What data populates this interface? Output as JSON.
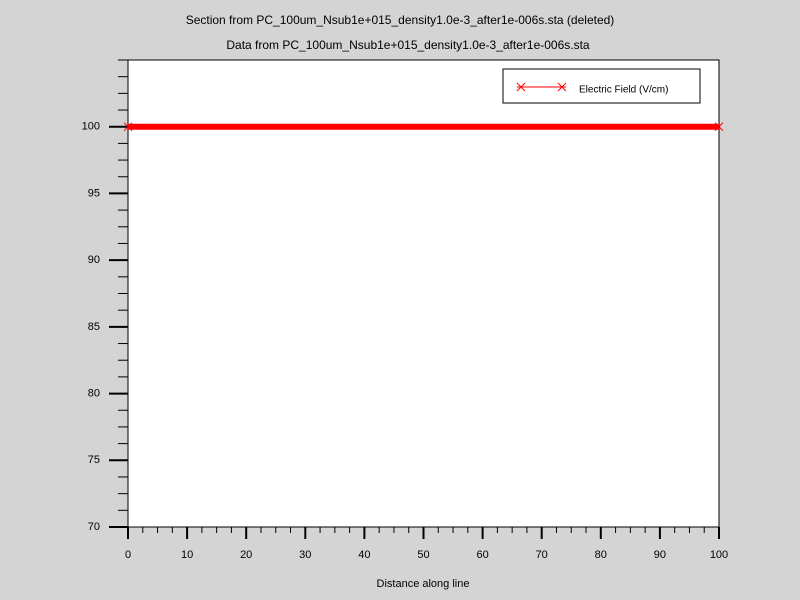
{
  "chart_data": {
    "type": "line",
    "title": "Section from PC_100um_Nsub1e+015_density1.0e-3_after1e-006s.sta (deleted)",
    "subtitle": "Data from PC_100um_Nsub1e+015_density1.0e-3_after1e-006s.sta",
    "x_label": "Distance along line",
    "x": [
      0,
      100
    ],
    "series": [
      {
        "name": "Electric Field (V/cm)",
        "color": "#ff0000",
        "values": [
          100,
          100
        ]
      }
    ],
    "xlim": [
      0,
      100
    ],
    "xticks": [
      0,
      10,
      20,
      30,
      40,
      50,
      60,
      70,
      80,
      90,
      100
    ],
    "ylim": [
      70,
      105
    ],
    "yticks": [
      70,
      75,
      80,
      85,
      90,
      95,
      100
    ],
    "grid": false,
    "legend": "upper right"
  }
}
